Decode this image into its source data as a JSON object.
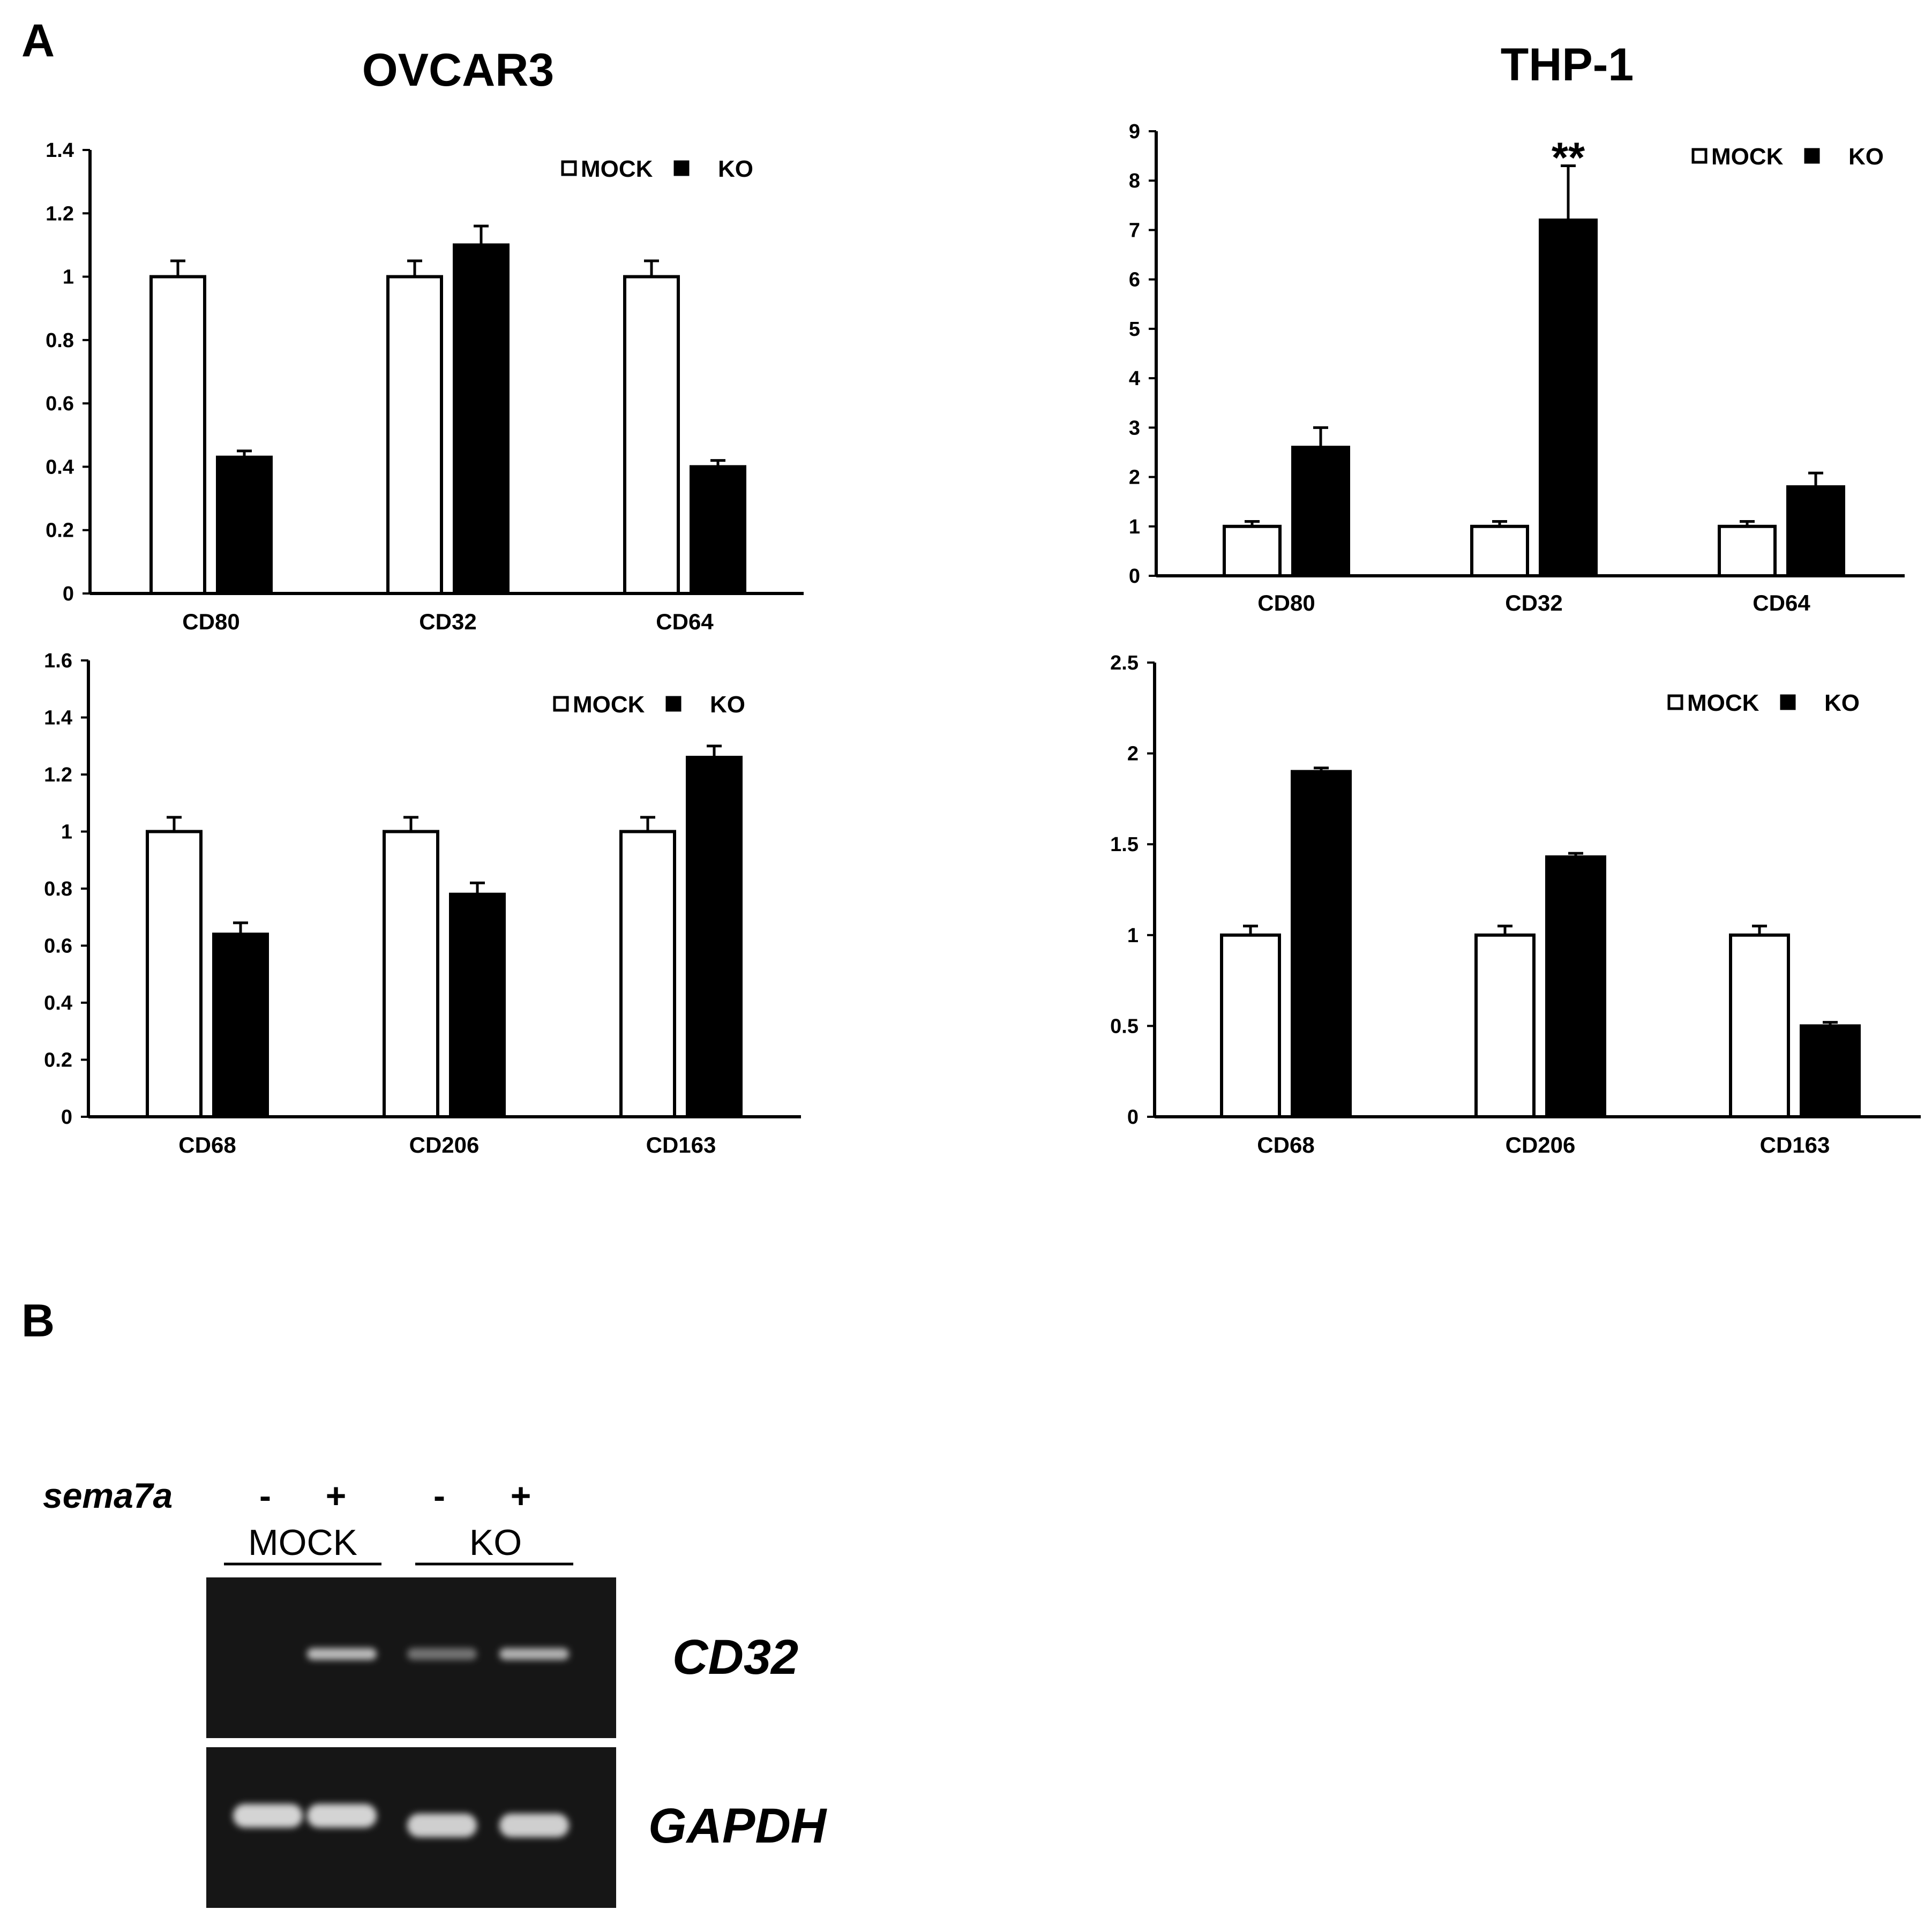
{
  "panels": {
    "a": "A",
    "b": "B"
  },
  "cell_lines": [
    "OVCAR3",
    "THP-1"
  ],
  "colors": {
    "mock": "#ffffff",
    "ko": "#000000",
    "axis": "#000000",
    "gel_bg": "#161616",
    "band": "#e4e4e4"
  },
  "chart_data": [
    {
      "type": "bar",
      "title": "OVCAR3",
      "categories": [
        "CD80",
        "CD32",
        "CD64"
      ],
      "series": [
        {
          "name": "MOCK",
          "values": [
            1.0,
            1.0,
            1.0
          ],
          "errors": [
            0.05,
            0.05,
            0.05
          ]
        },
        {
          "name": "KO",
          "values": [
            0.43,
            1.1,
            0.4
          ],
          "errors": [
            0.02,
            0.06,
            0.02
          ]
        }
      ],
      "ylim": [
        0,
        1.4
      ],
      "yticks": [
        "0",
        "0.2",
        "0.4",
        "0.6",
        "0.8",
        "1",
        "1.2",
        "1.4"
      ],
      "legend_position": "top-right",
      "annotations": []
    },
    {
      "type": "bar",
      "title": "THP-1",
      "categories": [
        "CD80",
        "CD32",
        "CD64"
      ],
      "series": [
        {
          "name": "MOCK",
          "values": [
            1.0,
            1.0,
            1.0
          ],
          "errors": [
            0.1,
            0.1,
            0.1
          ]
        },
        {
          "name": "KO",
          "values": [
            2.6,
            7.2,
            1.8
          ],
          "errors": [
            0.4,
            1.1,
            0.28
          ]
        }
      ],
      "ylim": [
        0,
        9
      ],
      "yticks": [
        "0",
        "1",
        "2",
        "3",
        "4",
        "5",
        "6",
        "7",
        "8",
        "9"
      ],
      "legend_position": "top-right",
      "annotations": [
        {
          "text": "**",
          "category": "CD32",
          "series": "KO"
        }
      ]
    },
    {
      "type": "bar",
      "title": "",
      "categories": [
        "CD68",
        "CD206",
        "CD163"
      ],
      "series": [
        {
          "name": "MOCK",
          "values": [
            1.0,
            1.0,
            1.0
          ],
          "errors": [
            0.05,
            0.05,
            0.05
          ]
        },
        {
          "name": "KO",
          "values": [
            0.64,
            0.78,
            1.26
          ],
          "errors": [
            0.04,
            0.04,
            0.04
          ]
        }
      ],
      "ylim": [
        0,
        1.6
      ],
      "yticks": [
        "0",
        "0.2",
        "0.4",
        "0.6",
        "0.8",
        "1",
        "1.2",
        "1.4",
        "1.6"
      ],
      "legend_position": "top-right",
      "annotations": []
    },
    {
      "type": "bar",
      "title": "",
      "categories": [
        "CD68",
        "CD206",
        "CD163"
      ],
      "series": [
        {
          "name": "MOCK",
          "values": [
            1.0,
            1.0,
            1.0
          ],
          "errors": [
            0.05,
            0.05,
            0.05
          ]
        },
        {
          "name": "KO",
          "values": [
            1.9,
            1.43,
            0.5
          ],
          "errors": [
            0.02,
            0.02,
            0.02
          ]
        }
      ],
      "ylim": [
        0,
        2.5
      ],
      "yticks": [
        "0",
        "0.5",
        "1",
        "1.5",
        "2",
        "2.5"
      ],
      "legend_position": "top-right",
      "annotations": []
    }
  ],
  "gel": {
    "sample_label": "sema7a",
    "lane_signs": [
      "-",
      "+",
      "-",
      "+"
    ],
    "groups": [
      "MOCK",
      "KO"
    ],
    "rows": [
      {
        "label": "CD32",
        "band_intensity": [
          0.0,
          0.8,
          0.45,
          0.75
        ]
      },
      {
        "label": "GAPDH",
        "band_intensity": [
          0.92,
          0.92,
          0.9,
          0.9
        ]
      }
    ]
  }
}
